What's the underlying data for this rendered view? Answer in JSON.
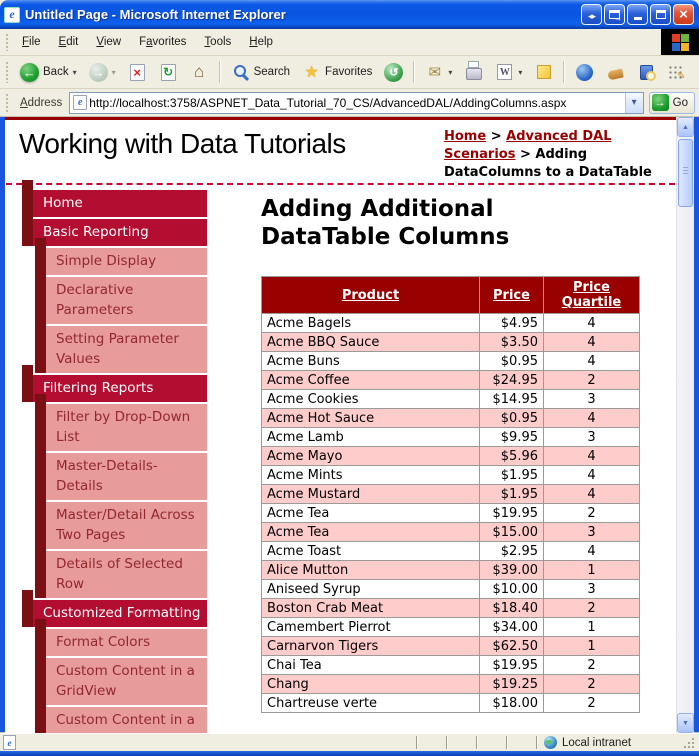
{
  "window": {
    "title": "Untitled Page - Microsoft Internet Explorer"
  },
  "menu": {
    "items": [
      "File",
      "Edit",
      "View",
      "Favorites",
      "Tools",
      "Help"
    ]
  },
  "toolbar": {
    "back": "Back",
    "search": "Search",
    "favorites": "Favorites"
  },
  "address": {
    "label": "Address",
    "url": "http://localhost:3758/ASPNET_Data_Tutorial_70_CS/AdvancedDAL/AddingColumns.aspx",
    "go": "Go"
  },
  "page": {
    "site_title": "Working with Data Tutorials",
    "breadcrumb": {
      "home": "Home",
      "sep1": " > ",
      "advanced_dal": "Advanced DAL Scenarios",
      "sep2": " > ",
      "current": "Adding DataColumns to a DataTable"
    },
    "sidebar": [
      {
        "label": "Home",
        "level": 1
      },
      {
        "label": "Basic Reporting",
        "level": 1
      },
      {
        "label": "Simple Display",
        "level": 2
      },
      {
        "label": "Declarative Parameters",
        "level": 2
      },
      {
        "label": "Setting Parameter Values",
        "level": 2
      },
      {
        "label": "Filtering Reports",
        "level": 1
      },
      {
        "label": "Filter by Drop-Down List",
        "level": 2
      },
      {
        "label": "Master-Details-Details",
        "level": 2
      },
      {
        "label": "Master/Detail Across Two Pages",
        "level": 2
      },
      {
        "label": "Details of Selected Row",
        "level": 2
      },
      {
        "label": "Customized Formatting",
        "level": 1
      },
      {
        "label": "Format Colors",
        "level": 2
      },
      {
        "label": "Custom Content in a GridView",
        "level": 2
      },
      {
        "label": "Custom Content in a DetailsView",
        "level": 2
      }
    ],
    "heading": "Adding Additional DataTable Columns",
    "table": {
      "columns": [
        "Product",
        "Price",
        "Price Quartile"
      ],
      "rows": [
        [
          "Acme Bagels",
          "$4.95",
          "4"
        ],
        [
          "Acme BBQ Sauce",
          "$3.50",
          "4"
        ],
        [
          "Acme Buns",
          "$0.95",
          "4"
        ],
        [
          "Acme Coffee",
          "$24.95",
          "2"
        ],
        [
          "Acme Cookies",
          "$14.95",
          "3"
        ],
        [
          "Acme Hot Sauce",
          "$0.95",
          "4"
        ],
        [
          "Acme Lamb",
          "$9.95",
          "3"
        ],
        [
          "Acme Mayo",
          "$5.96",
          "4"
        ],
        [
          "Acme Mints",
          "$1.95",
          "4"
        ],
        [
          "Acme Mustard",
          "$1.95",
          "4"
        ],
        [
          "Acme Tea",
          "$19.95",
          "2"
        ],
        [
          "Acme Tea",
          "$15.00",
          "3"
        ],
        [
          "Acme Toast",
          "$2.95",
          "4"
        ],
        [
          "Alice Mutton",
          "$39.00",
          "1"
        ],
        [
          "Aniseed Syrup",
          "$10.00",
          "3"
        ],
        [
          "Boston Crab Meat",
          "$18.40",
          "2"
        ],
        [
          "Camembert Pierrot",
          "$34.00",
          "1"
        ],
        [
          "Carnarvon Tigers",
          "$62.50",
          "1"
        ],
        [
          "Chai Tea",
          "$19.95",
          "2"
        ],
        [
          "Chang",
          "$19.25",
          "2"
        ],
        [
          "Chartreuse verte",
          "$18.00",
          "2"
        ]
      ]
    }
  },
  "status": {
    "zone": "Local intranet"
  },
  "colors": {
    "crimson": "#b30d31",
    "maroon_dark": "#7a1013",
    "pink_nav": "#e79b9b",
    "nav_sub_text": "#93282d",
    "header_bg": "#990000",
    "row_alt": "#ffcccc",
    "link_red": "#990000",
    "top_rule": "#990000",
    "dashed_rule": "#cc0033"
  }
}
